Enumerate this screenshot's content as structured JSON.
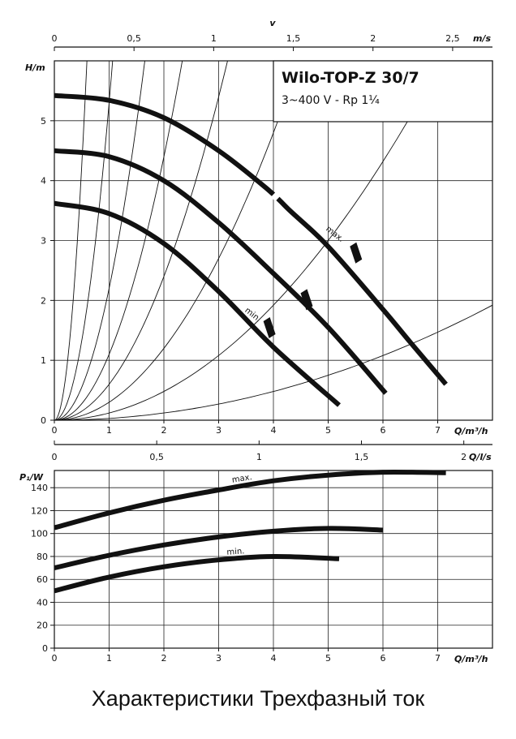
{
  "caption": "Характеристики Трехфазный ток",
  "chart_data": [
    {
      "type": "line",
      "title": "Wilo-TOP-Z 30/7",
      "subtitle": "3~400 V - Rp 1¼",
      "xlabel": "Q/m³/h",
      "ylabel": "H/m",
      "top_axis": {
        "label": "v",
        "unit": "m/s",
        "range": [
          0,
          2.75
        ],
        "ticks": [
          0,
          0.5,
          1,
          1.5,
          2,
          2.5
        ],
        "tick_labels": [
          "0",
          "0,5",
          "1",
          "1,5",
          "2",
          "2,5"
        ]
      },
      "bottom_axis2": {
        "unit": "Q/l/s",
        "range": [
          0,
          2.14
        ],
        "ticks": [
          0,
          0.5,
          1,
          1.5,
          2
        ],
        "tick_labels": [
          "0",
          "0,5",
          "1",
          "1,5",
          "2"
        ]
      },
      "xlim": [
        0,
        8
      ],
      "ylim": [
        0,
        6
      ],
      "xticks": [
        0,
        1,
        2,
        3,
        4,
        5,
        6,
        7
      ],
      "yticks": [
        0,
        1,
        2,
        3,
        4,
        5
      ],
      "series": [
        {
          "name": "max.",
          "x": [
            0,
            1,
            2,
            3,
            3.9,
            4.3,
            5,
            6,
            6.5,
            7.15
          ],
          "y": [
            5.42,
            5.34,
            5.05,
            4.5,
            3.85,
            3.5,
            2.9,
            1.85,
            1.3,
            0.6
          ]
        },
        {
          "name": "",
          "x": [
            0,
            1,
            2,
            3,
            4,
            5,
            6.05
          ],
          "y": [
            4.5,
            4.4,
            4.0,
            3.3,
            2.45,
            1.55,
            0.45
          ]
        },
        {
          "name": "min.",
          "x": [
            0,
            1,
            2,
            3,
            4,
            5.2
          ],
          "y": [
            3.62,
            3.45,
            2.95,
            2.15,
            1.22,
            0.25
          ]
        }
      ],
      "system_curves_k": [
        17,
        5.3,
        2.2,
        1.1,
        0.6,
        0.3,
        0.12,
        0.03
      ]
    },
    {
      "type": "line",
      "xlabel": "Q/m³/h",
      "ylabel": "P₁/W",
      "xlim": [
        0,
        8
      ],
      "ylim": [
        0,
        155
      ],
      "xticks": [
        0,
        1,
        2,
        3,
        4,
        5,
        6,
        7
      ],
      "yticks": [
        0,
        20,
        40,
        60,
        80,
        100,
        120,
        140
      ],
      "series": [
        {
          "name": "max.",
          "x": [
            0,
            1,
            2,
            3,
            4,
            5,
            6,
            7.15
          ],
          "y": [
            105,
            118,
            129,
            138,
            146,
            151,
            153.5,
            153
          ]
        },
        {
          "name": "",
          "x": [
            0,
            1,
            2,
            3,
            4,
            5,
            6
          ],
          "y": [
            70,
            81,
            90,
            97,
            102,
            104.5,
            103
          ]
        },
        {
          "name": "min.",
          "x": [
            0,
            1,
            2,
            3,
            4,
            5.2
          ],
          "y": [
            50,
            62,
            71,
            77,
            80,
            78
          ]
        }
      ]
    }
  ]
}
